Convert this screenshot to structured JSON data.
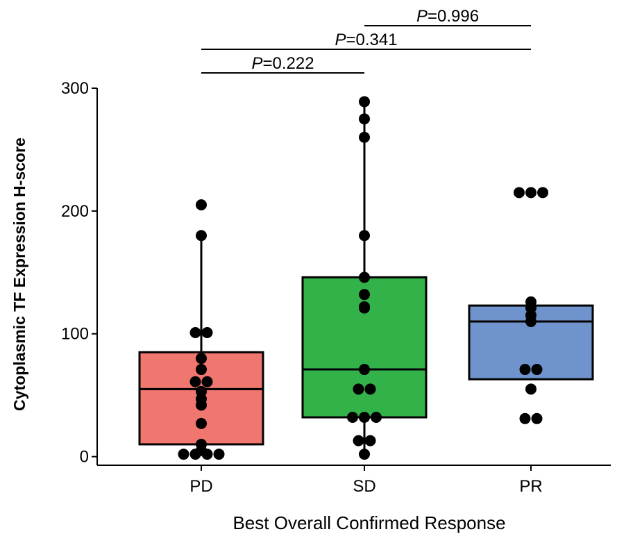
{
  "chart_data": {
    "type": "box",
    "y_label": "Cytoplasmic TF Expression H-score",
    "x_label": "Best Overall Confirmed Response",
    "categories": [
      "PD",
      "SD",
      "PR"
    ],
    "colors": [
      "#f07670",
      "#33b24a",
      "#6f93cc"
    ],
    "q1": [
      10,
      32,
      63
    ],
    "median": [
      55,
      71,
      110
    ],
    "q3": [
      85,
      146,
      123
    ],
    "whisker_low": [
      2,
      2,
      null
    ],
    "whisker_high": [
      180,
      289,
      null
    ],
    "points": [
      [
        205,
        180,
        101,
        101,
        80,
        71,
        61,
        61,
        53,
        47,
        42,
        27,
        10,
        5,
        2,
        2,
        2,
        2
      ],
      [
        289,
        275,
        260,
        180,
        146,
        132,
        122,
        121,
        71,
        55,
        55,
        32,
        32,
        32,
        13,
        13,
        2
      ],
      [
        215,
        215,
        215,
        126,
        121,
        115,
        110,
        71,
        71,
        55,
        31,
        31
      ]
    ],
    "ylim": [
      -7,
      300
    ],
    "yticks": [
      0,
      100,
      200,
      300
    ],
    "comparisons": [
      {
        "label": "P=0.222",
        "pair": [
          "PD",
          "SD"
        ]
      },
      {
        "label": "P=0.341",
        "pair": [
          "PD",
          "PR"
        ]
      },
      {
        "label": "P=0.996",
        "pair": [
          "SD",
          "PR"
        ]
      }
    ]
  }
}
